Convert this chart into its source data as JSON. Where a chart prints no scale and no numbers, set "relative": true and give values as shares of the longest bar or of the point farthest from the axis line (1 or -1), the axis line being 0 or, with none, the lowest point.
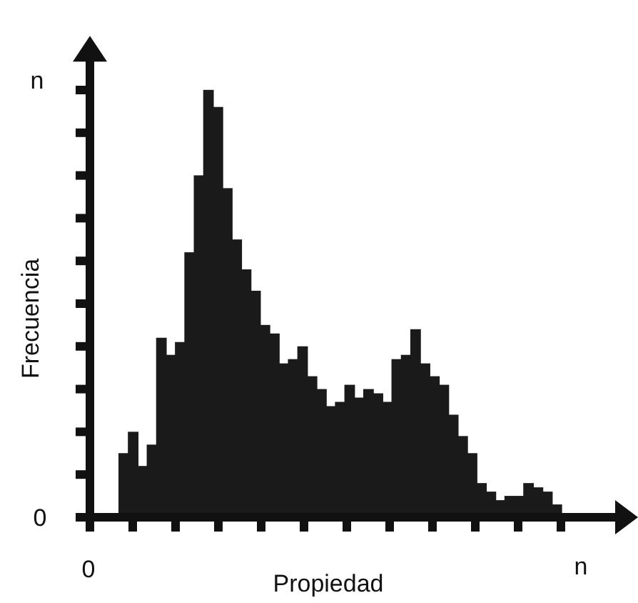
{
  "chart_data": {
    "type": "bar",
    "relative": true,
    "xlabel": "Propiedad",
    "ylabel": "Frecuencia",
    "color": "#1a1a1a",
    "annotations": [
      "n",
      "0",
      "0",
      "n"
    ],
    "categories": [
      null,
      null,
      null,
      null,
      null,
      null,
      null,
      null,
      null,
      null,
      null,
      null,
      null,
      null,
      null,
      null,
      null,
      null,
      null,
      null,
      null,
      null,
      null,
      null,
      null,
      null,
      null,
      null,
      null,
      null,
      null,
      null,
      null,
      null,
      null,
      null,
      null,
      null,
      null,
      null,
      null,
      null,
      null,
      null,
      null,
      null,
      null
    ],
    "values": [
      0.15,
      0.2,
      0.12,
      0.17,
      0.42,
      0.38,
      0.41,
      0.62,
      0.8,
      1.0,
      0.96,
      0.77,
      0.65,
      0.58,
      0.53,
      0.45,
      0.43,
      0.36,
      0.37,
      0.4,
      0.33,
      0.3,
      0.26,
      0.27,
      0.31,
      0.28,
      0.3,
      0.29,
      0.27,
      0.37,
      0.38,
      0.44,
      0.36,
      0.33,
      0.31,
      0.24,
      0.19,
      0.15,
      0.08,
      0.06,
      0.04,
      0.05,
      0.05,
      0.08,
      0.07,
      0.06,
      0.03
    ]
  }
}
